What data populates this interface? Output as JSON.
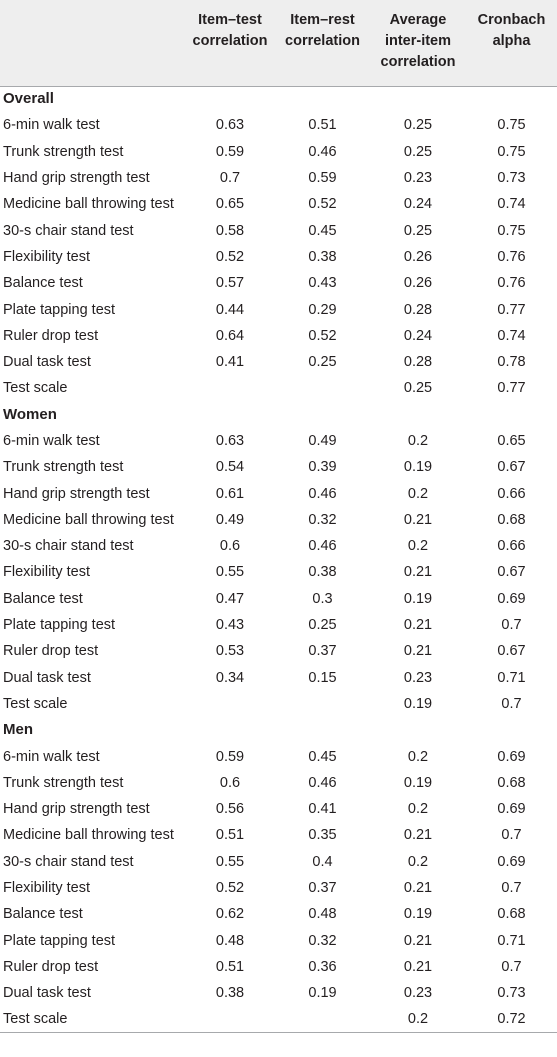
{
  "headers": [
    {
      "line1": "",
      "line2": "",
      "line3": ""
    },
    {
      "line1": "Item–test",
      "line2": "correlation",
      "line3": ""
    },
    {
      "line1": "Item–rest",
      "line2": "correlation",
      "line3": ""
    },
    {
      "line1": "Average",
      "line2": "inter-item",
      "line3": "correlation"
    },
    {
      "line1": "Cronbach",
      "line2": "alpha",
      "line3": ""
    }
  ],
  "sections": [
    {
      "title": "Overall",
      "rows": [
        {
          "label": "6-min walk test",
          "item_test": "0.63",
          "item_rest": "0.51",
          "avg_inter_item": "0.25",
          "cronbach_alpha": "0.75"
        },
        {
          "label": "Trunk strength test",
          "item_test": "0.59",
          "item_rest": "0.46",
          "avg_inter_item": "0.25",
          "cronbach_alpha": "0.75"
        },
        {
          "label": "Hand grip strength test",
          "item_test": "0.7",
          "item_rest": "0.59",
          "avg_inter_item": "0.23",
          "cronbach_alpha": "0.73"
        },
        {
          "label": "Medicine ball throwing test",
          "item_test": "0.65",
          "item_rest": "0.52",
          "avg_inter_item": "0.24",
          "cronbach_alpha": "0.74"
        },
        {
          "label": "30-s chair stand test",
          "item_test": "0.58",
          "item_rest": "0.45",
          "avg_inter_item": "0.25",
          "cronbach_alpha": "0.75"
        },
        {
          "label": "Flexibility test",
          "item_test": "0.52",
          "item_rest": "0.38",
          "avg_inter_item": "0.26",
          "cronbach_alpha": "0.76"
        },
        {
          "label": "Balance test",
          "item_test": "0.57",
          "item_rest": "0.43",
          "avg_inter_item": "0.26",
          "cronbach_alpha": "0.76"
        },
        {
          "label": "Plate tapping test",
          "item_test": "0.44",
          "item_rest": "0.29",
          "avg_inter_item": "0.28",
          "cronbach_alpha": "0.77"
        },
        {
          "label": "Ruler drop test",
          "item_test": "0.64",
          "item_rest": "0.52",
          "avg_inter_item": "0.24",
          "cronbach_alpha": "0.74"
        },
        {
          "label": "Dual task test",
          "item_test": "0.41",
          "item_rest": "0.25",
          "avg_inter_item": "0.28",
          "cronbach_alpha": "0.78"
        },
        {
          "label": "Test scale",
          "item_test": "",
          "item_rest": "",
          "avg_inter_item": "0.25",
          "cronbach_alpha": "0.77"
        }
      ]
    },
    {
      "title": "Women",
      "rows": [
        {
          "label": "6-min walk test",
          "item_test": "0.63",
          "item_rest": "0.49",
          "avg_inter_item": "0.2",
          "cronbach_alpha": "0.65"
        },
        {
          "label": "Trunk strength test",
          "item_test": "0.54",
          "item_rest": "0.39",
          "avg_inter_item": "0.19",
          "cronbach_alpha": "0.67"
        },
        {
          "label": "Hand grip strength test",
          "item_test": "0.61",
          "item_rest": "0.46",
          "avg_inter_item": "0.2",
          "cronbach_alpha": "0.66"
        },
        {
          "label": "Medicine ball throwing test",
          "item_test": "0.49",
          "item_rest": "0.32",
          "avg_inter_item": "0.21",
          "cronbach_alpha": "0.68"
        },
        {
          "label": "30-s chair stand test",
          "item_test": "0.6",
          "item_rest": "0.46",
          "avg_inter_item": "0.2",
          "cronbach_alpha": "0.66"
        },
        {
          "label": "Flexibility test",
          "item_test": "0.55",
          "item_rest": "0.38",
          "avg_inter_item": "0.21",
          "cronbach_alpha": "0.67"
        },
        {
          "label": "Balance test",
          "item_test": "0.47",
          "item_rest": "0.3",
          "avg_inter_item": "0.19",
          "cronbach_alpha": "0.69"
        },
        {
          "label": "Plate tapping test",
          "item_test": "0.43",
          "item_rest": "0.25",
          "avg_inter_item": "0.21",
          "cronbach_alpha": "0.7"
        },
        {
          "label": "Ruler drop test",
          "item_test": "0.53",
          "item_rest": "0.37",
          "avg_inter_item": "0.21",
          "cronbach_alpha": "0.67"
        },
        {
          "label": "Dual task test",
          "item_test": "0.34",
          "item_rest": "0.15",
          "avg_inter_item": "0.23",
          "cronbach_alpha": "0.71"
        },
        {
          "label": "Test scale",
          "item_test": "",
          "item_rest": "",
          "avg_inter_item": "0.19",
          "cronbach_alpha": "0.7"
        }
      ]
    },
    {
      "title": "Men",
      "rows": [
        {
          "label": "6-min walk test",
          "item_test": "0.59",
          "item_rest": "0.45",
          "avg_inter_item": "0.2",
          "cronbach_alpha": "0.69"
        },
        {
          "label": "Trunk strength test",
          "item_test": "0.6",
          "item_rest": "0.46",
          "avg_inter_item": "0.19",
          "cronbach_alpha": "0.68"
        },
        {
          "label": "Hand grip strength test",
          "item_test": "0.56",
          "item_rest": "0.41",
          "avg_inter_item": "0.2",
          "cronbach_alpha": "0.69"
        },
        {
          "label": "Medicine ball throwing test",
          "item_test": "0.51",
          "item_rest": "0.35",
          "avg_inter_item": "0.21",
          "cronbach_alpha": "0.7"
        },
        {
          "label": "30-s chair stand test",
          "item_test": "0.55",
          "item_rest": "0.4",
          "avg_inter_item": "0.2",
          "cronbach_alpha": "0.69"
        },
        {
          "label": "Flexibility test",
          "item_test": "0.52",
          "item_rest": "0.37",
          "avg_inter_item": "0.21",
          "cronbach_alpha": "0.7"
        },
        {
          "label": "Balance test",
          "item_test": "0.62",
          "item_rest": "0.48",
          "avg_inter_item": "0.19",
          "cronbach_alpha": "0.68"
        },
        {
          "label": "Plate tapping test",
          "item_test": "0.48",
          "item_rest": "0.32",
          "avg_inter_item": "0.21",
          "cronbach_alpha": "0.71"
        },
        {
          "label": "Ruler drop test",
          "item_test": "0.51",
          "item_rest": "0.36",
          "avg_inter_item": "0.21",
          "cronbach_alpha": "0.7"
        },
        {
          "label": "Dual task test",
          "item_test": "0.38",
          "item_rest": "0.19",
          "avg_inter_item": "0.23",
          "cronbach_alpha": "0.73"
        },
        {
          "label": "Test scale",
          "item_test": "",
          "item_rest": "",
          "avg_inter_item": "0.2",
          "cronbach_alpha": "0.72"
        }
      ]
    }
  ],
  "colors": {
    "header_bg": "#eeeeee",
    "rule": "#a7a9ac",
    "text": "#231f20"
  }
}
